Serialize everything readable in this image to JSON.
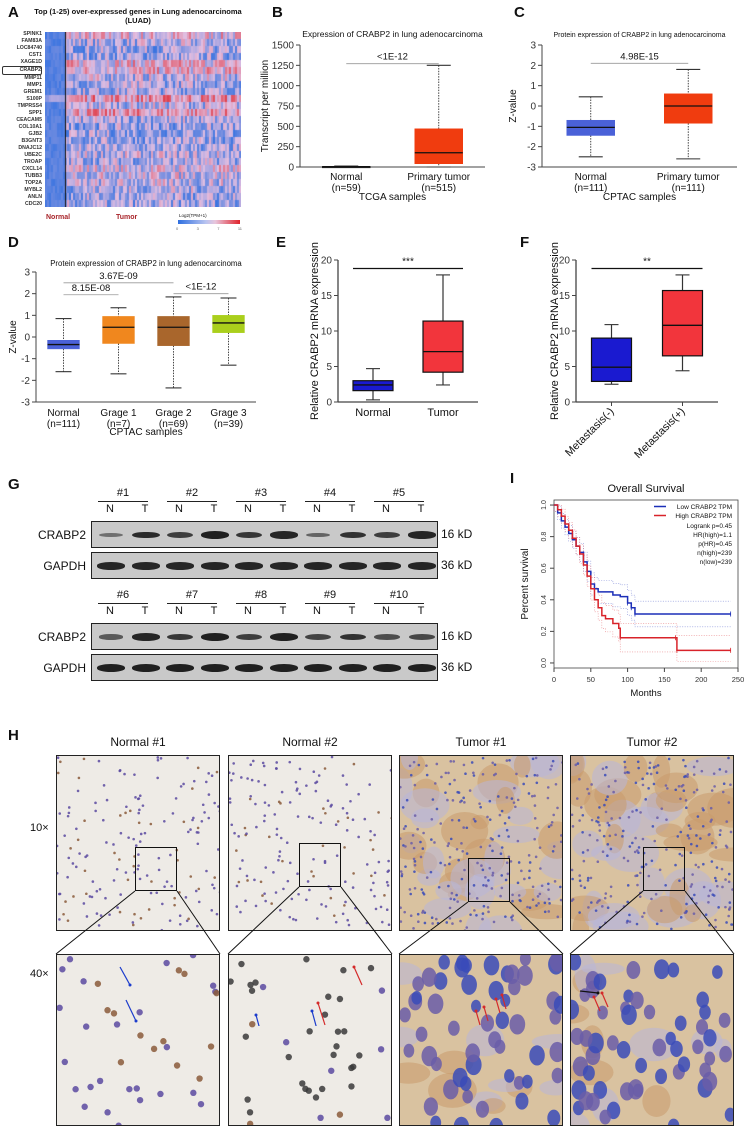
{
  "panels": {
    "A": {
      "label": "A",
      "title_line1": "Top (1-25) over-expressed genes in Lung adenocarcinoma",
      "title_line2": "(LUAD)",
      "genes": [
        "SPINK1",
        "FAM83A",
        "LOC84740",
        "CST1",
        "XAGE1D",
        "CRABP2",
        "MMP11",
        "MMP1",
        "GREM1",
        "S100P",
        "TMPRSS4",
        "SPP1",
        "CEACAM5",
        "COL10A1",
        "GJB2",
        "B3GNT3",
        "DNAJC12",
        "UBE2C",
        "TROAP",
        "CXCL14",
        "TUBB3",
        "TOP2A",
        "MYBL2",
        "ANLN",
        "CDC20"
      ],
      "highlighted_gene": "CRABP2",
      "group_labels": [
        "Normal",
        "Tumor"
      ],
      "colorbar_title": "Log2(TPM+1)",
      "colorbar_ticks": [
        "0",
        "3",
        "7",
        "11"
      ],
      "colors": {
        "low": "#2f6fe0",
        "mid": "#e8c6dc",
        "high": "#e0222a",
        "group_label": "#a8242a"
      }
    },
    "B": {
      "label": "B"
    },
    "C": {
      "label": "C"
    },
    "D": {
      "label": "D"
    },
    "E": {
      "label": "E"
    },
    "F": {
      "label": "F"
    },
    "G": {
      "label": "G",
      "rows": [
        {
          "samples": [
            "#1",
            "#2",
            "#3",
            "#4",
            "#5"
          ]
        },
        {
          "samples": [
            "#6",
            "#7",
            "#8",
            "#9",
            "#10"
          ]
        }
      ],
      "lane_labels": [
        "N",
        "T"
      ],
      "proteins": [
        {
          "name": "CRABP2",
          "size": "16 kD"
        },
        {
          "name": "GAPDH",
          "size": "36 kD"
        }
      ],
      "band_intensity": {
        "row1_CRABP2": [
          0.25,
          0.85,
          0.7,
          0.95,
          0.75,
          0.9,
          0.35,
          0.8,
          0.7,
          0.9
        ],
        "row1_GAPDH": [
          0.9,
          0.9,
          0.9,
          0.9,
          0.9,
          0.9,
          0.9,
          0.9,
          0.9,
          0.9
        ],
        "row2_CRABP2": [
          0.45,
          0.9,
          0.75,
          0.95,
          0.7,
          0.95,
          0.65,
          0.8,
          0.55,
          0.6
        ],
        "row2_GAPDH": [
          0.95,
          0.95,
          0.95,
          0.95,
          0.95,
          0.95,
          0.95,
          0.95,
          0.95,
          0.95
        ]
      }
    },
    "H": {
      "label": "H",
      "columns": [
        "Normal #1",
        "Normal #2",
        "Tumor #1",
        "Tumor #2"
      ],
      "magnifications": [
        "10×",
        "40×"
      ]
    },
    "I": {
      "label": "I"
    }
  },
  "chart_data": [
    {
      "id": "B",
      "type": "box",
      "title": "Expression of CRABP2 in lung adenocarcinoma",
      "xlabel": "TCGA samples",
      "ylabel": "Transcript per million",
      "ylim": [
        0,
        1500
      ],
      "yticks": [
        0,
        250,
        500,
        750,
        1000,
        1250,
        1500
      ],
      "categories": [
        "Normal\n(n=59)",
        "Primary tumor\n(n=515)"
      ],
      "category_names": [
        "Normal",
        "Primary tumor"
      ],
      "category_n": [
        "(n=59)",
        "(n=515)"
      ],
      "boxes": [
        {
          "min": 0,
          "q1": 2,
          "median": 5,
          "q3": 8,
          "max": 12,
          "color": "#1a1a1a"
        },
        {
          "min": 0,
          "q1": 40,
          "median": 175,
          "q3": 470,
          "max": 1250,
          "color": "#f03c0f"
        }
      ],
      "significance": [
        {
          "from": 0,
          "to": 1,
          "label": "<1E-12",
          "y": 1270
        }
      ]
    },
    {
      "id": "C",
      "type": "box",
      "title": "Protein expression of CRABP2 in lung adenocarcinoma",
      "xlabel": "CPTAC samples",
      "ylabel": "Z-value",
      "ylim": [
        -3,
        3
      ],
      "yticks": [
        -3,
        -2,
        -1,
        0,
        1,
        2,
        3
      ],
      "category_names": [
        "Normal",
        "Primary tumor"
      ],
      "category_n": [
        "(n=111)",
        "(n=111)"
      ],
      "boxes": [
        {
          "min": -2.5,
          "q1": -1.45,
          "median": -1.05,
          "q3": -0.7,
          "max": 0.45,
          "color": "#4a61d8"
        },
        {
          "min": -2.6,
          "q1": -0.85,
          "median": 0.0,
          "q3": 0.6,
          "max": 1.8,
          "color": "#f03c0f"
        }
      ],
      "significance": [
        {
          "from": 0,
          "to": 1,
          "label": "4.98E-15",
          "y": 2.1
        }
      ]
    },
    {
      "id": "D",
      "type": "box",
      "title": "Protein expression of CRABP2 in lung adenocarcinoma",
      "xlabel": "CPTAC samples",
      "ylabel": "Z-value",
      "ylim": [
        -3,
        3
      ],
      "yticks": [
        -3,
        -2,
        -1,
        0,
        1,
        2,
        3
      ],
      "category_names": [
        "Normal",
        "Grage 1",
        "Grage 2",
        "Grage 3"
      ],
      "category_n": [
        "(n=111)",
        "(n=7)",
        "(n=69)",
        "(n=39)"
      ],
      "boxes": [
        {
          "min": -1.6,
          "q1": -0.55,
          "median": -0.35,
          "q3": -0.15,
          "max": 0.85,
          "color": "#4a61d8"
        },
        {
          "min": -1.7,
          "q1": -0.3,
          "median": 0.45,
          "q3": 0.95,
          "max": 1.35,
          "color": "#f0871e"
        },
        {
          "min": -2.35,
          "q1": -0.4,
          "median": 0.45,
          "q3": 0.95,
          "max": 1.85,
          "color": "#a9662c"
        },
        {
          "min": -1.3,
          "q1": 0.2,
          "median": 0.65,
          "q3": 1.0,
          "max": 1.8,
          "color": "#aacf1c"
        }
      ],
      "significance": [
        {
          "from": 0,
          "to": 2,
          "label": "3.67E-09",
          "y": 2.5
        },
        {
          "from": 0,
          "to": 1,
          "label": "8.15E-08",
          "y": 1.95
        },
        {
          "from": 2,
          "to": 3,
          "label": "<1E-12",
          "y": 2.0
        }
      ]
    },
    {
      "id": "E",
      "type": "box",
      "title": "",
      "xlabel": "",
      "ylabel": "Relative CRABP2 mRNA expression",
      "ylim": [
        0,
        20
      ],
      "yticks": [
        0,
        5,
        10,
        15,
        20
      ],
      "category_names": [
        "Normal",
        "Tumor"
      ],
      "category_n": [
        "",
        ""
      ],
      "boxes": [
        {
          "min": 0.3,
          "q1": 1.6,
          "median": 2.4,
          "q3": 3.0,
          "max": 4.7,
          "color": "#1a1ad0"
        },
        {
          "min": 2.4,
          "q1": 4.2,
          "median": 7.1,
          "q3": 11.4,
          "max": 17.9,
          "color": "#f2353c"
        }
      ],
      "significance": [
        {
          "from": 0,
          "to": 1,
          "label": "***",
          "y": 18.8
        }
      ]
    },
    {
      "id": "F",
      "type": "box",
      "title": "",
      "xlabel": "",
      "ylabel": "Relative CRABP2 mRNA expression",
      "ylim": [
        0,
        20
      ],
      "yticks": [
        0,
        5,
        10,
        15,
        20
      ],
      "category_names": [
        "Metastasis(-)",
        "Metastasis(+)"
      ],
      "category_n": [
        "",
        ""
      ],
      "rotate_labels": true,
      "boxes": [
        {
          "min": 2.5,
          "q1": 2.9,
          "median": 4.9,
          "q3": 9.0,
          "max": 10.9,
          "color": "#1a1ad0"
        },
        {
          "min": 4.4,
          "q1": 6.5,
          "median": 10.8,
          "q3": 15.7,
          "max": 17.9,
          "color": "#f2353c"
        }
      ],
      "significance": [
        {
          "from": 0,
          "to": 1,
          "label": "**",
          "y": 18.8
        }
      ]
    },
    {
      "id": "I",
      "type": "line",
      "title": "Overall Survival",
      "xlabel": "Months",
      "ylabel": "Percent survival",
      "xlim": [
        0,
        250
      ],
      "ylim": [
        0,
        1.0
      ],
      "xticks": [
        0,
        50,
        100,
        150,
        200,
        250
      ],
      "yticks": [
        0.0,
        0.2,
        0.4,
        0.6,
        0.8,
        1.0
      ],
      "legend": [
        "Low CRABP2 TPM",
        "High CRABP2 TPM"
      ],
      "legend_position": "top-right",
      "annotations": [
        "Logrank p=0.45",
        "HR(high)=1.1",
        "p(HR)=0.45",
        "n(high)=239",
        "n(low)=239"
      ],
      "series": [
        {
          "name": "Low CRABP2 TPM",
          "color": "#1c2fb8",
          "x": [
            0,
            5,
            10,
            15,
            20,
            25,
            30,
            35,
            40,
            45,
            50,
            55,
            60,
            65,
            70,
            80,
            90,
            100,
            105,
            110,
            240
          ],
          "y": [
            1.0,
            0.95,
            0.9,
            0.86,
            0.82,
            0.78,
            0.74,
            0.7,
            0.64,
            0.58,
            0.5,
            0.47,
            0.45,
            0.45,
            0.45,
            0.43,
            0.42,
            0.38,
            0.35,
            0.31,
            0.31
          ]
        },
        {
          "name": "High CRABP2 TPM",
          "color": "#d8232a",
          "x": [
            0,
            5,
            10,
            15,
            20,
            25,
            30,
            35,
            40,
            45,
            50,
            55,
            60,
            65,
            70,
            80,
            88,
            90,
            165,
            167,
            240
          ],
          "y": [
            1.0,
            0.97,
            0.93,
            0.88,
            0.84,
            0.79,
            0.74,
            0.69,
            0.62,
            0.55,
            0.47,
            0.4,
            0.35,
            0.3,
            0.28,
            0.25,
            0.22,
            0.16,
            0.16,
            0.08,
            0.08
          ]
        }
      ]
    }
  ]
}
